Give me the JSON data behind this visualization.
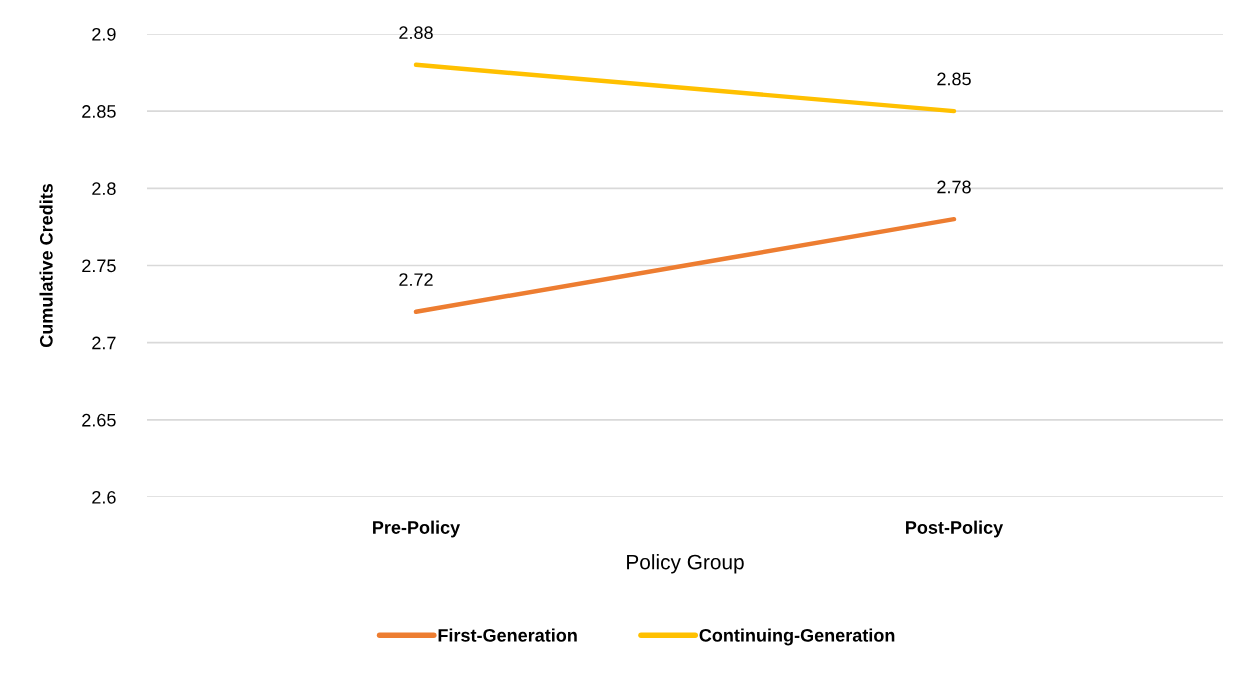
{
  "chart_data": {
    "type": "line",
    "xlabel": "Policy Group",
    "ylabel": "Cumulative Credits",
    "categories": [
      "Pre-Policy",
      "Post-Policy"
    ],
    "series": [
      {
        "name": "First-Generation",
        "color": "#ed7d31",
        "values": [
          2.72,
          2.78
        ]
      },
      {
        "name": "Continuing-Generation",
        "color": "#ffc000",
        "values": [
          2.88,
          2.85
        ]
      }
    ],
    "ylim": [
      2.6,
      2.9
    ],
    "yticks": [
      2.6,
      2.65,
      2.7,
      2.75,
      2.8,
      2.85,
      2.9
    ],
    "grid": "y",
    "legend": "bottom",
    "data_labels": true,
    "line_style": "solid"
  }
}
